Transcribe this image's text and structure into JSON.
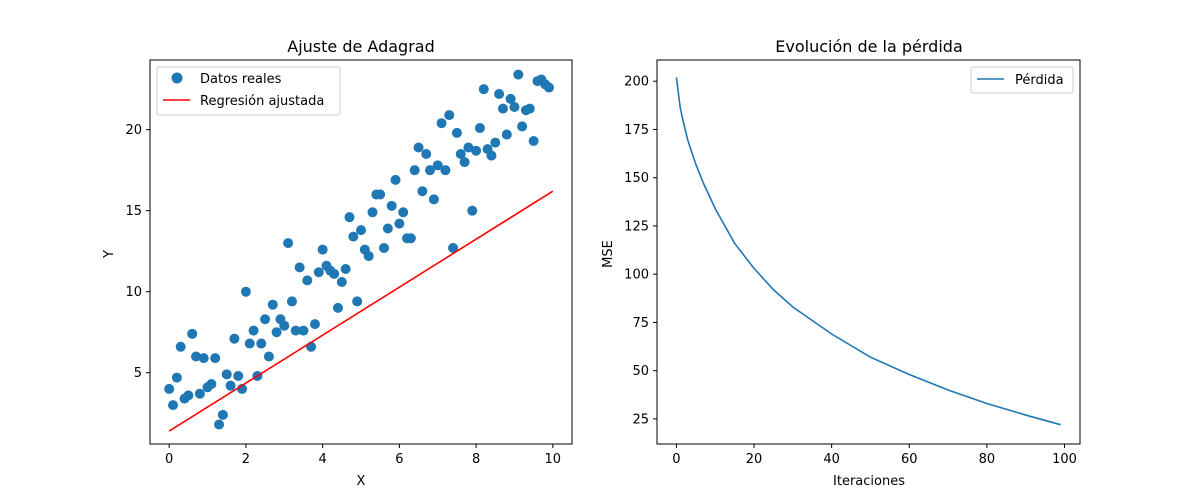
{
  "figure": {
    "background": "#ffffff"
  },
  "colors": {
    "scatter": "#1f77b4",
    "regression": "#ff0000",
    "loss": "#1f77b4"
  },
  "chart_data": [
    {
      "type": "scatter",
      "title": "Ajuste de Adagrad",
      "xlabel": "X",
      "ylabel": "Y",
      "xlim": [
        -0.5,
        10.5
      ],
      "ylim": [
        0.6,
        24.3
      ],
      "xticks": [
        0,
        2,
        4,
        6,
        8,
        10
      ],
      "yticks": [
        5,
        10,
        15,
        20
      ],
      "grid": false,
      "legend_position": "top-left",
      "series": [
        {
          "name": "Datos reales",
          "kind": "scatter",
          "points": [
            [
              0.0,
              4.0
            ],
            [
              0.1,
              3.0
            ],
            [
              0.2,
              4.7
            ],
            [
              0.3,
              6.6
            ],
            [
              0.4,
              3.4
            ],
            [
              0.5,
              3.6
            ],
            [
              0.6,
              7.4
            ],
            [
              0.7,
              6.0
            ],
            [
              0.8,
              3.7
            ],
            [
              0.9,
              5.9
            ],
            [
              1.0,
              4.1
            ],
            [
              1.1,
              4.3
            ],
            [
              1.2,
              5.9
            ],
            [
              1.3,
              1.8
            ],
            [
              1.4,
              2.4
            ],
            [
              1.5,
              4.9
            ],
            [
              1.6,
              4.2
            ],
            [
              1.7,
              7.1
            ],
            [
              1.8,
              4.8
            ],
            [
              1.9,
              4.0
            ],
            [
              2.0,
              10.0
            ],
            [
              2.1,
              6.8
            ],
            [
              2.2,
              7.6
            ],
            [
              2.3,
              4.8
            ],
            [
              2.4,
              6.8
            ],
            [
              2.5,
              8.3
            ],
            [
              2.6,
              6.0
            ],
            [
              2.7,
              9.2
            ],
            [
              2.8,
              7.5
            ],
            [
              2.9,
              8.3
            ],
            [
              3.0,
              7.9
            ],
            [
              3.1,
              13.0
            ],
            [
              3.2,
              9.4
            ],
            [
              3.3,
              7.6
            ],
            [
              3.4,
              11.5
            ],
            [
              3.5,
              7.6
            ],
            [
              3.6,
              10.7
            ],
            [
              3.7,
              6.6
            ],
            [
              3.8,
              8.0
            ],
            [
              3.9,
              11.2
            ],
            [
              4.0,
              12.6
            ],
            [
              4.1,
              11.6
            ],
            [
              4.2,
              11.3
            ],
            [
              4.3,
              11.1
            ],
            [
              4.4,
              9.0
            ],
            [
              4.5,
              10.6
            ],
            [
              4.6,
              11.4
            ],
            [
              4.7,
              14.6
            ],
            [
              4.8,
              13.4
            ],
            [
              4.9,
              9.4
            ],
            [
              5.0,
              13.8
            ],
            [
              5.1,
              12.6
            ],
            [
              5.2,
              12.2
            ],
            [
              5.3,
              14.9
            ],
            [
              5.4,
              16.0
            ],
            [
              5.5,
              16.0
            ],
            [
              5.6,
              12.7
            ],
            [
              5.7,
              13.9
            ],
            [
              5.8,
              15.3
            ],
            [
              5.9,
              16.9
            ],
            [
              6.0,
              14.2
            ],
            [
              6.1,
              14.9
            ],
            [
              6.2,
              13.3
            ],
            [
              6.3,
              13.3
            ],
            [
              6.4,
              17.5
            ],
            [
              6.5,
              18.9
            ],
            [
              6.6,
              16.2
            ],
            [
              6.7,
              18.5
            ],
            [
              6.8,
              17.5
            ],
            [
              6.9,
              15.7
            ],
            [
              7.0,
              17.8
            ],
            [
              7.1,
              20.4
            ],
            [
              7.2,
              17.5
            ],
            [
              7.3,
              20.9
            ],
            [
              7.4,
              12.7
            ],
            [
              7.5,
              19.8
            ],
            [
              7.6,
              18.5
            ],
            [
              7.7,
              18.0
            ],
            [
              7.8,
              18.9
            ],
            [
              7.9,
              15.0
            ],
            [
              8.0,
              18.7
            ],
            [
              8.1,
              20.1
            ],
            [
              8.2,
              22.5
            ],
            [
              8.3,
              18.8
            ],
            [
              8.4,
              18.4
            ],
            [
              8.5,
              19.2
            ],
            [
              8.6,
              22.2
            ],
            [
              8.7,
              21.3
            ],
            [
              8.8,
              19.7
            ],
            [
              8.9,
              21.9
            ],
            [
              9.0,
              21.4
            ],
            [
              9.1,
              23.4
            ],
            [
              9.2,
              20.2
            ],
            [
              9.3,
              21.2
            ],
            [
              9.4,
              21.3
            ],
            [
              9.5,
              19.3
            ],
            [
              9.6,
              23.0
            ],
            [
              9.7,
              23.1
            ],
            [
              9.8,
              22.8
            ],
            [
              9.9,
              22.6
            ]
          ]
        },
        {
          "name": "Regresión ajustada",
          "kind": "line",
          "points": [
            [
              0,
              1.4
            ],
            [
              10,
              16.2
            ]
          ]
        }
      ]
    },
    {
      "type": "line",
      "title": "Evolución de la pérdida",
      "xlabel": "Iteraciones",
      "ylabel": "MSE",
      "xlim": [
        -5,
        104
      ],
      "ylim": [
        12,
        211
      ],
      "xticks": [
        0,
        20,
        40,
        60,
        80,
        100
      ],
      "yticks": [
        25,
        50,
        75,
        100,
        125,
        150,
        175,
        200
      ],
      "grid": false,
      "legend_position": "top-right",
      "series": [
        {
          "name": "Pérdida",
          "x": [
            0,
            1,
            2,
            3,
            5,
            7,
            10,
            15,
            20,
            25,
            30,
            40,
            50,
            60,
            70,
            80,
            90,
            99
          ],
          "y": [
            202,
            186,
            177,
            169,
            157,
            147,
            134,
            116,
            103,
            92,
            83,
            69,
            57,
            48,
            40,
            33,
            27,
            22
          ]
        }
      ]
    }
  ]
}
